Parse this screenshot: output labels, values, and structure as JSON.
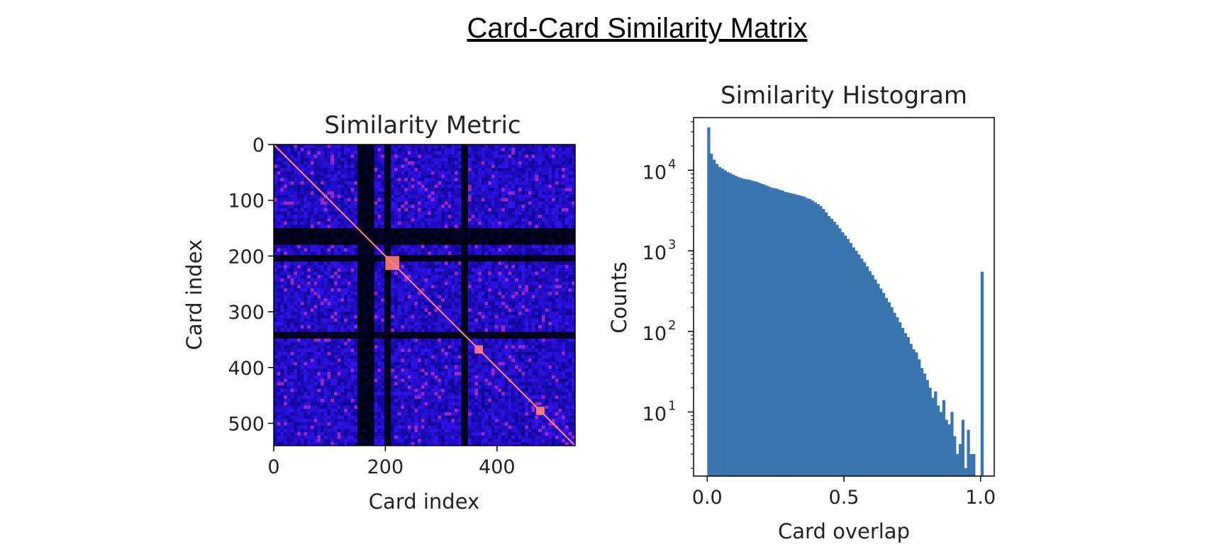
{
  "page_title": "Card-Card Similarity Matrix",
  "colors": {
    "heatmap_low": "#000000",
    "heatmap_mid": "#1a14f2",
    "heatmap_high": "#ff7f7f",
    "bar": "#3b75af"
  },
  "chart_data": [
    {
      "type": "heatmap",
      "title": "Similarity Metric",
      "xlabel": "Card index",
      "ylabel": "Card index",
      "n": 540,
      "xlim": [
        0,
        540
      ],
      "ylim": [
        540,
        0
      ],
      "xticks": [
        0,
        200,
        400
      ],
      "yticks": [
        0,
        100,
        200,
        300,
        400,
        500
      ],
      "colormap": "gnuplot2",
      "dark_bands": [
        [
          150,
          180
        ],
        [
          200,
          210
        ],
        [
          335,
          350
        ]
      ],
      "bright_blocks": [
        [
          200,
          225
        ],
        [
          360,
          375
        ],
        [
          470,
          485
        ]
      ]
    },
    {
      "type": "bar",
      "title": "Similarity Histogram",
      "xlabel": "Card overlap",
      "ylabel": "Counts",
      "yscale": "log",
      "xlim": [
        -0.05,
        1.05
      ],
      "ylim": [
        1.6,
        45000
      ],
      "xticks": [
        0.0,
        0.5,
        1.0
      ],
      "yticks": [
        {
          "value": 10,
          "label": "10¹",
          "base": "10",
          "exp": "1"
        },
        {
          "value": 100,
          "label": "10²",
          "base": "10",
          "exp": "2"
        },
        {
          "value": 1000,
          "label": "10³",
          "base": "10",
          "exp": "3"
        },
        {
          "value": 10000,
          "label": "10⁴",
          "base": "10",
          "exp": "4"
        }
      ],
      "bin_width": 0.01,
      "bin_start": 0.0,
      "values": [
        34000,
        16000,
        13500,
        12000,
        11000,
        10500,
        10000,
        9500,
        9200,
        8800,
        8500,
        8200,
        8000,
        7800,
        7700,
        7600,
        7400,
        7300,
        7100,
        6900,
        6700,
        6500,
        6300,
        6100,
        6000,
        5900,
        5700,
        5600,
        5400,
        5300,
        5200,
        5100,
        5000,
        4900,
        4800,
        4700,
        4500,
        4400,
        4200,
        4000,
        3800,
        3600,
        3300,
        3000,
        2700,
        2500,
        2300,
        2100,
        1900,
        1700,
        1550,
        1400,
        1250,
        1100,
        1000,
        900,
        800,
        720,
        640,
        560,
        500,
        440,
        390,
        340,
        300,
        260,
        230,
        200,
        170,
        150,
        130,
        110,
        95,
        85,
        70,
        60,
        55,
        45,
        35,
        30,
        25,
        20,
        15,
        18,
        12,
        10,
        14,
        8,
        7,
        10,
        5,
        3,
        4,
        8,
        2,
        6,
        3,
        3,
        1,
        0,
        550
      ]
    }
  ]
}
